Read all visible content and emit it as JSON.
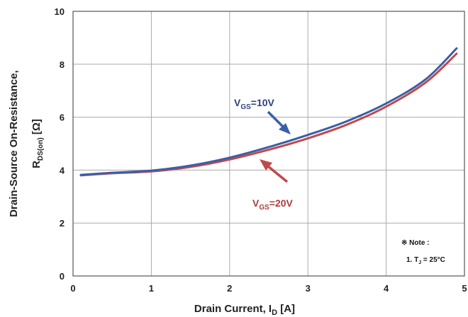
{
  "chart_data": {
    "type": "line",
    "xlabel": {
      "main": "Drain Current, I",
      "sub": "D",
      "unit": " [A]"
    },
    "ylabel": {
      "line1": "Drain-Source On-Resistance,",
      "main": "R",
      "sub": "DS(on)",
      "unit": " [Ω]"
    },
    "xlim": [
      0,
      5
    ],
    "ylim": [
      0,
      10
    ],
    "xticks": [
      "0",
      "1",
      "2",
      "3",
      "4",
      "5"
    ],
    "yticks": [
      "0",
      "2",
      "4",
      "6",
      "8",
      "10"
    ],
    "grid": true,
    "series": [
      {
        "label": {
          "main": "V",
          "sub": "GS",
          "value": "=10V"
        },
        "color": "#3a5fa8",
        "x": [
          0.1,
          0.5,
          1.0,
          1.5,
          2.0,
          2.5,
          3.0,
          3.5,
          4.0,
          4.5,
          4.9
        ],
        "y": [
          3.82,
          3.9,
          3.98,
          4.17,
          4.47,
          4.87,
          5.33,
          5.85,
          6.52,
          7.42,
          8.6
        ]
      },
      {
        "label": {
          "main": "V",
          "sub": "GS",
          "value": "=20V"
        },
        "color": "#c04a4a",
        "x": [
          0.1,
          0.5,
          1.0,
          1.5,
          2.0,
          2.5,
          3.0,
          3.5,
          4.0,
          4.5,
          4.9
        ],
        "y": [
          3.8,
          3.88,
          3.95,
          4.12,
          4.4,
          4.77,
          5.2,
          5.72,
          6.4,
          7.3,
          8.4
        ]
      }
    ],
    "note": {
      "title": "※ Note :",
      "line": {
        "prefix": "1. T",
        "sub": "J",
        "value": " = 25°C"
      }
    }
  }
}
